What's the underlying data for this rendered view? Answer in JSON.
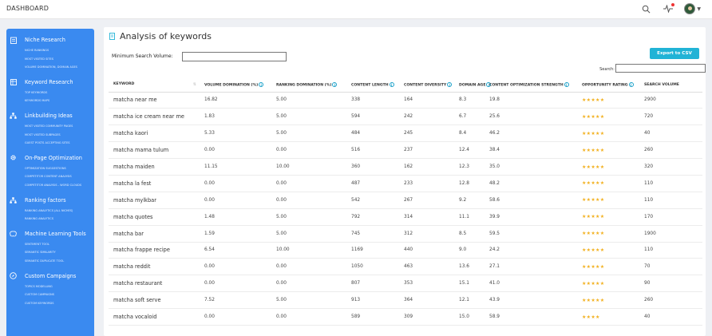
{
  "header": {
    "title": "DASHBOARD"
  },
  "sidebar": {
    "sections": [
      {
        "title": "Niche Research",
        "icon": "clipboard-icon",
        "items": [
          "NICHE RANKINGS",
          "MOST VISITED SITES",
          "VOLUME DOMINATION, DOMAIN AGES"
        ]
      },
      {
        "title": "Keyword Research",
        "icon": "grid-icon",
        "items": [
          "TOP KEYWORDS",
          "KEYWORDS MAPS"
        ]
      },
      {
        "title": "Linkbuilding Ideas",
        "icon": "sitemap-icon",
        "items": [
          "MOST VISITED COMMUNITY PAGES",
          "MOST VISITED SUBPAGES",
          "GUEST POSTS ACCEPTING SITES"
        ]
      },
      {
        "title": "On-Page Optimization",
        "icon": "gear-icon",
        "items": [
          "OPTIMIZATION SUGGESTIONS",
          "COMPETITOR CONTENT ANALYSIS",
          "COMPETITOR ANALYSIS - WORD CLOUDS"
        ]
      },
      {
        "title": "Ranking factors",
        "icon": "sitemap-icon",
        "items": [
          "RANKING ANALYTICS (ALL NICHES)",
          "RANKING ANALYTICS"
        ]
      },
      {
        "title": "Machine Learning Tools",
        "icon": "brain-icon",
        "items": [
          "SENTIMENT TOOL",
          "SEMANTIC SIMILARITY",
          "SEMANTIC DUPLICATE TOOL"
        ]
      },
      {
        "title": "Custom Campaigns",
        "icon": "compass-icon",
        "items": [
          "TOPICS MODELLING",
          "CUSTOM CAMPAIGNS",
          "CUSTOM KEYWORDS"
        ]
      }
    ]
  },
  "main": {
    "title": "Analysis of keywords",
    "min_volume_label": "Minimum Search Volume:",
    "min_volume_value": "",
    "export_label": "Export to CSV",
    "search_label": "Search:",
    "search_value": "",
    "table": {
      "columns": [
        "KEYWORD",
        "VOLUME DOMINATION (%)",
        "RANKING DOMINATION (%)",
        "CONTENT LENGTH",
        "CONTENT DIVERSITY",
        "DOMAIN AGE",
        "CONTENT OPTIMIZATION STRENGTH",
        "OPPORTUNITY RATING",
        "SEARCH VOLUME"
      ],
      "rows": [
        {
          "keyword": "matcha near me",
          "vol_dom": "16.82",
          "rank_dom": "5.00",
          "length": "338",
          "diversity": "164",
          "age": "8.3",
          "strength": "19.8",
          "rating": 5,
          "volume": "2900"
        },
        {
          "keyword": "matcha ice cream near me",
          "vol_dom": "1.83",
          "rank_dom": "5.00",
          "length": "594",
          "diversity": "242",
          "age": "6.7",
          "strength": "25.6",
          "rating": 5,
          "volume": "720"
        },
        {
          "keyword": "matcha kaori",
          "vol_dom": "5.33",
          "rank_dom": "5.00",
          "length": "484",
          "diversity": "245",
          "age": "8.4",
          "strength": "46.2",
          "rating": 5,
          "volume": "40"
        },
        {
          "keyword": "matcha mama tulum",
          "vol_dom": "0.00",
          "rank_dom": "0.00",
          "length": "516",
          "diversity": "237",
          "age": "12.4",
          "strength": "38.4",
          "rating": 5,
          "volume": "260"
        },
        {
          "keyword": "matcha maiden",
          "vol_dom": "11.15",
          "rank_dom": "10.00",
          "length": "360",
          "diversity": "162",
          "age": "12.3",
          "strength": "35.0",
          "rating": 5,
          "volume": "320"
        },
        {
          "keyword": "matcha la fest",
          "vol_dom": "0.00",
          "rank_dom": "0.00",
          "length": "487",
          "diversity": "233",
          "age": "12.8",
          "strength": "48.2",
          "rating": 5,
          "volume": "110"
        },
        {
          "keyword": "matcha mylkbar",
          "vol_dom": "0.00",
          "rank_dom": "0.00",
          "length": "542",
          "diversity": "267",
          "age": "9.2",
          "strength": "58.6",
          "rating": 5,
          "volume": "110"
        },
        {
          "keyword": "matcha quotes",
          "vol_dom": "1.48",
          "rank_dom": "5.00",
          "length": "792",
          "diversity": "314",
          "age": "11.1",
          "strength": "39.9",
          "rating": 5,
          "volume": "170"
        },
        {
          "keyword": "matcha bar",
          "vol_dom": "1.59",
          "rank_dom": "5.00",
          "length": "745",
          "diversity": "312",
          "age": "8.5",
          "strength": "59.5",
          "rating": 5,
          "volume": "1900"
        },
        {
          "keyword": "matcha frappe recipe",
          "vol_dom": "6.54",
          "rank_dom": "10.00",
          "length": "1169",
          "diversity": "440",
          "age": "9.0",
          "strength": "24.2",
          "rating": 5,
          "volume": "110"
        },
        {
          "keyword": "matcha reddit",
          "vol_dom": "0.00",
          "rank_dom": "0.00",
          "length": "1050",
          "diversity": "463",
          "age": "13.6",
          "strength": "27.1",
          "rating": 5,
          "volume": "70"
        },
        {
          "keyword": "matcha restaurant",
          "vol_dom": "0.00",
          "rank_dom": "0.00",
          "length": "807",
          "diversity": "353",
          "age": "15.1",
          "strength": "41.0",
          "rating": 5,
          "volume": "90"
        },
        {
          "keyword": "matcha soft serve",
          "vol_dom": "7.52",
          "rank_dom": "5.00",
          "length": "913",
          "diversity": "364",
          "age": "12.1",
          "strength": "43.9",
          "rating": 5,
          "volume": "260"
        },
        {
          "keyword": "matcha vocaloid",
          "vol_dom": "0.00",
          "rank_dom": "0.00",
          "length": "589",
          "diversity": "309",
          "age": "15.0",
          "strength": "58.9",
          "rating": 4,
          "volume": "40"
        }
      ]
    }
  },
  "colors": {
    "sidebar": "#3a8af0",
    "accent": "#21b3d6",
    "star": "#f2b01e"
  }
}
